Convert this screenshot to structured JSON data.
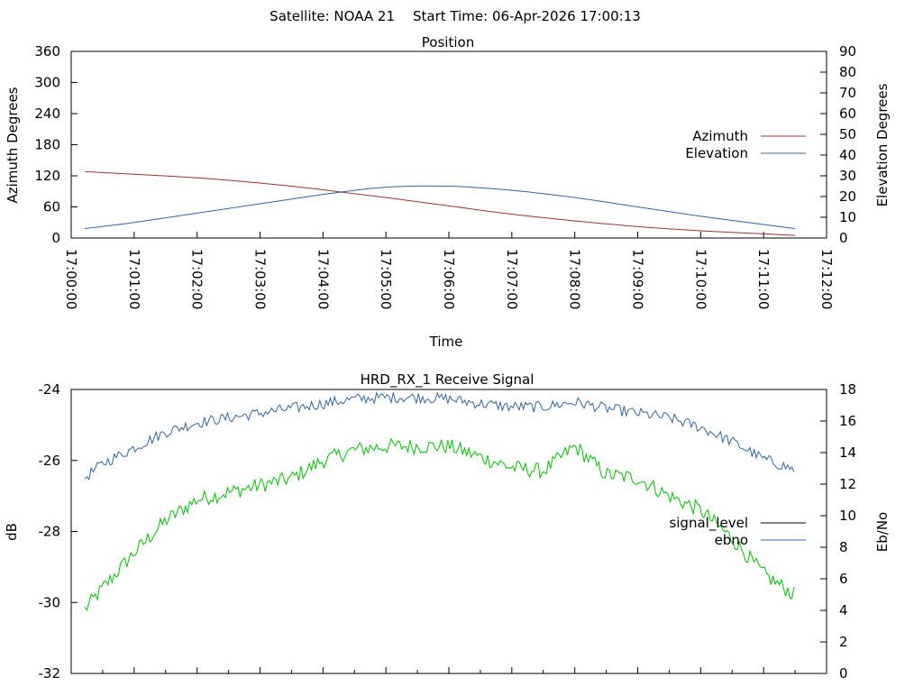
{
  "header": {
    "satellite_text": "Satellite: NOAA 21",
    "start_time_text": "Start Time: 06-Apr-2026 17:00:13"
  },
  "chart_data": [
    {
      "type": "line",
      "title": "Position",
      "xlabel": "Time",
      "ylabel": "Azimuth Degrees",
      "y2label": "Elevation Degrees",
      "xlim": [
        "17:00:00",
        "17:12:00"
      ],
      "ylim": [
        0,
        360
      ],
      "y2lim": [
        0,
        90
      ],
      "x_ticks": [
        "17:00:00",
        "17:01:00",
        "17:02:00",
        "17:03:00",
        "17:04:00",
        "17:05:00",
        "17:06:00",
        "17:07:00",
        "17:08:00",
        "17:09:00",
        "17:10:00",
        "17:11:00",
        "17:12:00"
      ],
      "y_ticks": [
        "0",
        "60",
        "120",
        "180",
        "240",
        "300",
        "360"
      ],
      "y2_ticks": [
        "0",
        "10",
        "20",
        "30",
        "40",
        "50",
        "60",
        "70",
        "80",
        "90"
      ],
      "legend_position": "right",
      "series": [
        {
          "name": "Azimuth",
          "axis": "left",
          "color": "#a03232",
          "x": [
            "17:00:13",
            "17:01:00",
            "17:02:00",
            "17:03:00",
            "17:04:00",
            "17:05:00",
            "17:06:00",
            "17:07:00",
            "17:08:00",
            "17:09:00",
            "17:10:00",
            "17:11:00",
            "17:11:30"
          ],
          "values": [
            128,
            123,
            116,
            106,
            93,
            78,
            62,
            46,
            33,
            22,
            14,
            8,
            5
          ]
        },
        {
          "name": "Elevation",
          "axis": "right",
          "color": "#3264a0",
          "x": [
            "17:00:13",
            "17:01:00",
            "17:02:00",
            "17:03:00",
            "17:04:00",
            "17:05:00",
            "17:06:00",
            "17:07:00",
            "17:08:00",
            "17:09:00",
            "17:10:00",
            "17:11:00",
            "17:11:30"
          ],
          "values": [
            4.5,
            7.5,
            12,
            16.5,
            21,
            24.5,
            25,
            23,
            19.5,
            15,
            10.5,
            6.5,
            4.5
          ]
        }
      ]
    },
    {
      "type": "line",
      "title": "HRD_RX_1 Receive Signal",
      "ylabel": "dB",
      "y2label": "Eb/No",
      "xlim": [
        "17:00:00",
        "17:12:00"
      ],
      "ylim": [
        -32,
        -24
      ],
      "y2lim": [
        0,
        18
      ],
      "y_ticks": [
        "-32",
        "-30",
        "-28",
        "-26",
        "-24"
      ],
      "y2_ticks": [
        "0",
        "2",
        "4",
        "6",
        "8",
        "10",
        "12",
        "14",
        "16",
        "18"
      ],
      "legend_position": "right",
      "series": [
        {
          "name": "signal_level",
          "axis": "left",
          "color": "#00c000",
          "legend_color": "#000000",
          "x": [
            "17:00:13",
            "17:00:30",
            "17:01:00",
            "17:01:30",
            "17:02:00",
            "17:02:30",
            "17:03:00",
            "17:03:30",
            "17:04:00",
            "17:04:30",
            "17:05:00",
            "17:05:30",
            "17:06:00",
            "17:06:30",
            "17:07:00",
            "17:07:30",
            "17:08:00",
            "17:08:30",
            "17:09:00",
            "17:09:30",
            "17:10:00",
            "17:10:30",
            "17:11:00",
            "17:11:30"
          ],
          "values": [
            -30.2,
            -29.6,
            -28.6,
            -27.7,
            -27.1,
            -26.9,
            -26.7,
            -26.5,
            -26.0,
            -25.7,
            -25.6,
            -25.6,
            -25.6,
            -25.9,
            -26.2,
            -26.3,
            -25.6,
            -26.4,
            -26.5,
            -27.0,
            -27.4,
            -28.2,
            -29.2,
            -29.8
          ]
        },
        {
          "name": "ebno",
          "axis": "right",
          "color": "#3264a0",
          "x": [
            "17:00:13",
            "17:00:30",
            "17:01:00",
            "17:01:30",
            "17:02:00",
            "17:02:30",
            "17:03:00",
            "17:03:30",
            "17:04:00",
            "17:04:30",
            "17:05:00",
            "17:05:30",
            "17:06:00",
            "17:06:30",
            "17:07:00",
            "17:07:30",
            "17:08:00",
            "17:08:30",
            "17:09:00",
            "17:09:30",
            "17:10:00",
            "17:10:30",
            "17:11:00",
            "17:11:30"
          ],
          "values": [
            12.4,
            13.3,
            14.3,
            15.3,
            15.9,
            16.2,
            16.5,
            16.8,
            17.1,
            17.4,
            17.5,
            17.5,
            17.4,
            17.1,
            16.9,
            16.9,
            17.2,
            16.8,
            16.5,
            16.2,
            15.6,
            14.7,
            13.6,
            12.9
          ]
        }
      ]
    }
  ]
}
